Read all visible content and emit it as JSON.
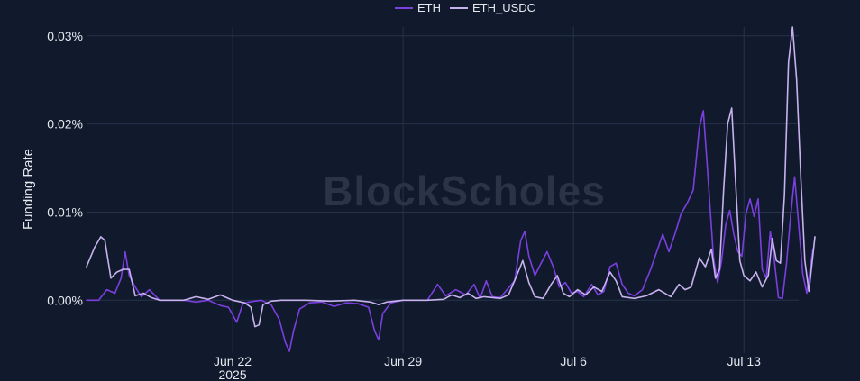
{
  "watermark": "BlockScholes",
  "chart_data": {
    "type": "line",
    "ylabel": "Funding Rate",
    "y_unit": "%",
    "ylim": [
      -0.006,
      0.031
    ],
    "yticks": [
      {
        "value": 0.0,
        "label": "0.00%"
      },
      {
        "value": 0.01,
        "label": "0.01%"
      },
      {
        "value": 0.02,
        "label": "0.02%"
      },
      {
        "value": 0.03,
        "label": "0.03%"
      }
    ],
    "xlim": [
      "2025-06-16",
      "2025-07-15T06:00"
    ],
    "xticks": [
      {
        "value": "2025-06-22",
        "label": "Jun 22",
        "sublabel": "2025"
      },
      {
        "value": "2025-06-29",
        "label": "Jun 29",
        "sublabel": ""
      },
      {
        "value": "2025-07-06",
        "label": "Jul 6",
        "sublabel": ""
      },
      {
        "value": "2025-07-13",
        "label": "Jul 13",
        "sublabel": ""
      }
    ],
    "grid": true,
    "legend": "top-center",
    "series": [
      {
        "name": "ETH",
        "color": "#7b3fe0",
        "points": [
          [
            "2025-06-16T00:00",
            0.0
          ],
          [
            "2025-06-16T12:00",
            0.0
          ],
          [
            "2025-06-16T20:00",
            0.0012
          ],
          [
            "2025-06-17T04:00",
            0.0008
          ],
          [
            "2025-06-17T10:00",
            0.0025
          ],
          [
            "2025-06-17T14:00",
            0.0055
          ],
          [
            "2025-06-17T18:00",
            0.0028
          ],
          [
            "2025-06-18T00:00",
            0.0015
          ],
          [
            "2025-06-18T06:00",
            0.0004
          ],
          [
            "2025-06-18T14:00",
            0.0012
          ],
          [
            "2025-06-19T00:00",
            0.0
          ],
          [
            "2025-06-20T00:00",
            0.0
          ],
          [
            "2025-06-20T12:00",
            -0.0002
          ],
          [
            "2025-06-21T00:00",
            0.0
          ],
          [
            "2025-06-21T12:00",
            -0.0006
          ],
          [
            "2025-06-21T20:00",
            -0.0008
          ],
          [
            "2025-06-22T04:00",
            -0.0025
          ],
          [
            "2025-06-22T10:00",
            -0.0004
          ],
          [
            "2025-06-22T16:00",
            -0.0002
          ],
          [
            "2025-06-23T04:00",
            0.0
          ],
          [
            "2025-06-23T14:00",
            -0.0005
          ],
          [
            "2025-06-23T22:00",
            -0.0022
          ],
          [
            "2025-06-24T04:00",
            -0.0048
          ],
          [
            "2025-06-24T08:00",
            -0.0058
          ],
          [
            "2025-06-24T12:00",
            -0.0035
          ],
          [
            "2025-06-24T18:00",
            -0.001
          ],
          [
            "2025-06-25T04:00",
            -0.0003
          ],
          [
            "2025-06-25T16:00",
            -0.0002
          ],
          [
            "2025-06-26T04:00",
            -0.0007
          ],
          [
            "2025-06-26T16:00",
            -0.0003
          ],
          [
            "2025-06-27T04:00",
            -0.0004
          ],
          [
            "2025-06-27T14:00",
            -0.0008
          ],
          [
            "2025-06-27T20:00",
            -0.0035
          ],
          [
            "2025-06-28T00:00",
            -0.0045
          ],
          [
            "2025-06-28T04:00",
            -0.0015
          ],
          [
            "2025-06-28T12:00",
            -0.0003
          ],
          [
            "2025-06-29T00:00",
            0.0
          ],
          [
            "2025-06-30T00:00",
            0.0
          ],
          [
            "2025-06-30T10:00",
            0.0018
          ],
          [
            "2025-06-30T18:00",
            0.0005
          ],
          [
            "2025-07-01T04:00",
            0.0012
          ],
          [
            "2025-07-01T14:00",
            0.0006
          ],
          [
            "2025-07-01T22:00",
            0.0018
          ],
          [
            "2025-07-02T04:00",
            0.0002
          ],
          [
            "2025-07-02T10:00",
            0.0022
          ],
          [
            "2025-07-02T16:00",
            0.0004
          ],
          [
            "2025-07-03T00:00",
            0.0003
          ],
          [
            "2025-07-03T08:00",
            0.0014
          ],
          [
            "2025-07-03T14:00",
            0.0022
          ],
          [
            "2025-07-03T20:00",
            0.0068
          ],
          [
            "2025-07-04T00:00",
            0.0078
          ],
          [
            "2025-07-04T04:00",
            0.005
          ],
          [
            "2025-07-04T10:00",
            0.0028
          ],
          [
            "2025-07-04T16:00",
            0.0042
          ],
          [
            "2025-07-04T22:00",
            0.0055
          ],
          [
            "2025-07-05T04:00",
            0.0038
          ],
          [
            "2025-07-05T10:00",
            0.0015
          ],
          [
            "2025-07-05T16:00",
            0.002
          ],
          [
            "2025-07-05T22:00",
            0.0008
          ],
          [
            "2025-07-06T04:00",
            0.001
          ],
          [
            "2025-07-06T10:00",
            0.0004
          ],
          [
            "2025-07-06T18:00",
            0.0018
          ],
          [
            "2025-07-07T00:00",
            0.0006
          ],
          [
            "2025-07-07T06:00",
            0.001
          ],
          [
            "2025-07-07T12:00",
            0.0038
          ],
          [
            "2025-07-07T18:00",
            0.0042
          ],
          [
            "2025-07-08T00:00",
            0.0018
          ],
          [
            "2025-07-08T06:00",
            0.0008
          ],
          [
            "2025-07-08T12:00",
            0.0005
          ],
          [
            "2025-07-08T20:00",
            0.0012
          ],
          [
            "2025-07-09T04:00",
            0.0035
          ],
          [
            "2025-07-09T10:00",
            0.0055
          ],
          [
            "2025-07-09T16:00",
            0.0075
          ],
          [
            "2025-07-09T22:00",
            0.0055
          ],
          [
            "2025-07-10T04:00",
            0.0075
          ],
          [
            "2025-07-10T10:00",
            0.0098
          ],
          [
            "2025-07-10T16:00",
            0.011
          ],
          [
            "2025-07-10T22:00",
            0.0125
          ],
          [
            "2025-07-11T04:00",
            0.0195
          ],
          [
            "2025-07-11T08:00",
            0.0215
          ],
          [
            "2025-07-11T12:00",
            0.015
          ],
          [
            "2025-07-11T18:00",
            0.0048
          ],
          [
            "2025-07-11T22:00",
            0.002
          ],
          [
            "2025-07-12T02:00",
            0.0045
          ],
          [
            "2025-07-12T06:00",
            0.0085
          ],
          [
            "2025-07-12T10:00",
            0.0102
          ],
          [
            "2025-07-12T14:00",
            0.0075
          ],
          [
            "2025-07-12T18:00",
            0.0055
          ],
          [
            "2025-07-12T22:00",
            0.005
          ],
          [
            "2025-07-13T02:00",
            0.0098
          ],
          [
            "2025-07-13T06:00",
            0.0115
          ],
          [
            "2025-07-13T10:00",
            0.0095
          ],
          [
            "2025-07-13T14:00",
            0.0115
          ],
          [
            "2025-07-13T18:00",
            0.0035
          ],
          [
            "2025-07-13T22:00",
            0.0025
          ],
          [
            "2025-07-14T02:00",
            0.0078
          ],
          [
            "2025-07-14T06:00",
            0.0045
          ],
          [
            "2025-07-14T10:00",
            0.0003
          ],
          [
            "2025-07-14T14:00",
            0.0002
          ],
          [
            "2025-07-14T18:00",
            0.0042
          ],
          [
            "2025-07-14T22:00",
            0.0095
          ],
          [
            "2025-07-15T02:00",
            0.014
          ],
          [
            "2025-07-15T06:00",
            0.0085
          ],
          [
            "2025-07-15T10:00",
            0.003
          ],
          [
            "2025-07-15T14:00",
            0.0008
          ],
          [
            "2025-07-15T20:00",
            0.0058
          ]
        ]
      },
      {
        "name": "ETH_USDC",
        "color": "#c7b2ee",
        "points": [
          [
            "2025-06-16T00:00",
            0.0038
          ],
          [
            "2025-06-16T08:00",
            0.006
          ],
          [
            "2025-06-16T14:00",
            0.0072
          ],
          [
            "2025-06-16T18:00",
            0.0068
          ],
          [
            "2025-06-17T00:00",
            0.0025
          ],
          [
            "2025-06-17T06:00",
            0.0032
          ],
          [
            "2025-06-17T12:00",
            0.0035
          ],
          [
            "2025-06-17T18:00",
            0.0035
          ],
          [
            "2025-06-18T00:00",
            0.0005
          ],
          [
            "2025-06-18T08:00",
            0.0008
          ],
          [
            "2025-06-18T16:00",
            0.0003
          ],
          [
            "2025-06-19T00:00",
            0.0
          ],
          [
            "2025-06-20T00:00",
            0.0
          ],
          [
            "2025-06-20T12:00",
            0.0004
          ],
          [
            "2025-06-21T00:00",
            0.0001
          ],
          [
            "2025-06-21T12:00",
            0.0006
          ],
          [
            "2025-06-22T00:00",
            0.0
          ],
          [
            "2025-06-22T12:00",
            -0.0003
          ],
          [
            "2025-06-22T18:00",
            -0.0008
          ],
          [
            "2025-06-22T22:00",
            -0.003
          ],
          [
            "2025-06-23T02:00",
            -0.0028
          ],
          [
            "2025-06-23T06:00",
            -0.0005
          ],
          [
            "2025-06-23T14:00",
            -0.0001
          ],
          [
            "2025-06-24T00:00",
            0.0
          ],
          [
            "2025-06-25T00:00",
            0.0
          ],
          [
            "2025-06-26T00:00",
            -0.0001
          ],
          [
            "2025-06-27T00:00",
            0.0
          ],
          [
            "2025-06-27T16:00",
            -0.0002
          ],
          [
            "2025-06-28T00:00",
            -0.0005
          ],
          [
            "2025-06-28T08:00",
            -0.0002
          ],
          [
            "2025-06-29T00:00",
            0.0
          ],
          [
            "2025-06-30T00:00",
            0.0
          ],
          [
            "2025-06-30T16:00",
            0.0001
          ],
          [
            "2025-07-01T00:00",
            0.0006
          ],
          [
            "2025-07-01T08:00",
            0.0003
          ],
          [
            "2025-07-01T16:00",
            0.0008
          ],
          [
            "2025-07-02T00:00",
            0.0002
          ],
          [
            "2025-07-02T08:00",
            0.0004
          ],
          [
            "2025-07-03T00:00",
            0.0002
          ],
          [
            "2025-07-03T08:00",
            0.0006
          ],
          [
            "2025-07-03T16:00",
            0.0028
          ],
          [
            "2025-07-03T22:00",
            0.0045
          ],
          [
            "2025-07-04T04:00",
            0.002
          ],
          [
            "2025-07-04T10:00",
            0.0004
          ],
          [
            "2025-07-04T18:00",
            0.0002
          ],
          [
            "2025-07-05T02:00",
            0.0018
          ],
          [
            "2025-07-05T08:00",
            0.0028
          ],
          [
            "2025-07-05T14:00",
            0.0008
          ],
          [
            "2025-07-05T20:00",
            0.0004
          ],
          [
            "2025-07-06T04:00",
            0.0012
          ],
          [
            "2025-07-06T12:00",
            0.0006
          ],
          [
            "2025-07-06T20:00",
            0.0015
          ],
          [
            "2025-07-07T04:00",
            0.001
          ],
          [
            "2025-07-07T12:00",
            0.0032
          ],
          [
            "2025-07-07T18:00",
            0.0022
          ],
          [
            "2025-07-08T00:00",
            0.0004
          ],
          [
            "2025-07-08T12:00",
            0.0002
          ],
          [
            "2025-07-09T00:00",
            0.0005
          ],
          [
            "2025-07-09T12:00",
            0.0012
          ],
          [
            "2025-07-10T00:00",
            0.0004
          ],
          [
            "2025-07-10T08:00",
            0.0018
          ],
          [
            "2025-07-10T14:00",
            0.0012
          ],
          [
            "2025-07-10T20:00",
            0.0015
          ],
          [
            "2025-07-11T04:00",
            0.0048
          ],
          [
            "2025-07-11T10:00",
            0.0038
          ],
          [
            "2025-07-11T16:00",
            0.0058
          ],
          [
            "2025-07-11T20:00",
            0.0025
          ],
          [
            "2025-07-12T00:00",
            0.0035
          ],
          [
            "2025-07-12T04:00",
            0.0125
          ],
          [
            "2025-07-12T08:00",
            0.02
          ],
          [
            "2025-07-12T12:00",
            0.0218
          ],
          [
            "2025-07-12T16:00",
            0.013
          ],
          [
            "2025-07-12T20:00",
            0.0045
          ],
          [
            "2025-07-13T00:00",
            0.0028
          ],
          [
            "2025-07-13T06:00",
            0.0022
          ],
          [
            "2025-07-13T12:00",
            0.0032
          ],
          [
            "2025-07-13T18:00",
            0.0015
          ],
          [
            "2025-07-14T00:00",
            0.0028
          ],
          [
            "2025-07-14T04:00",
            0.007
          ],
          [
            "2025-07-14T08:00",
            0.0045
          ],
          [
            "2025-07-14T12:00",
            0.0042
          ],
          [
            "2025-07-14T16:00",
            0.012
          ],
          [
            "2025-07-14T20:00",
            0.027
          ],
          [
            "2025-07-15T00:00",
            0.031
          ],
          [
            "2025-07-15T04:00",
            0.025
          ],
          [
            "2025-07-15T08:00",
            0.014
          ],
          [
            "2025-07-15T12:00",
            0.0045
          ],
          [
            "2025-07-15T16:00",
            0.001
          ],
          [
            "2025-07-15T22:00",
            0.0072
          ]
        ]
      }
    ]
  }
}
